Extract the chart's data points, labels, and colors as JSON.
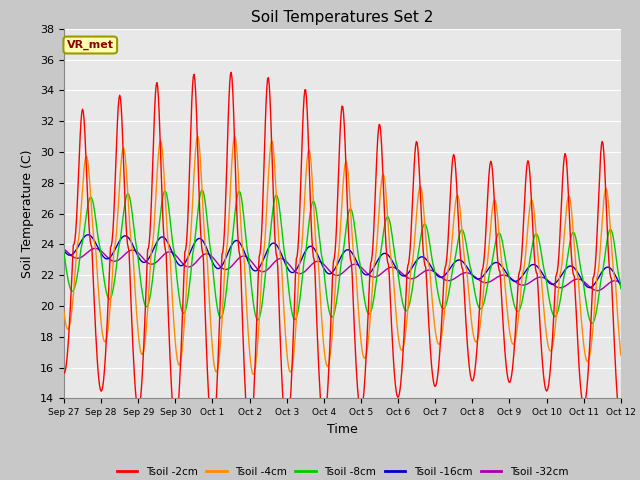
{
  "title": "Soil Temperatures Set 2",
  "xlabel": "Time",
  "ylabel": "Soil Temperature (C)",
  "ylim": [
    14,
    38
  ],
  "yticks": [
    14,
    16,
    18,
    20,
    22,
    24,
    26,
    28,
    30,
    32,
    34,
    36,
    38
  ],
  "plot_bg_color": "#e8e8e8",
  "fig_bg_color": "#c8c8c8",
  "annotation_text": "VR_met",
  "annotation_box_color": "#ffffb0",
  "annotation_box_edge": "#999900",
  "annotation_text_color": "#8B0000",
  "series_colors": {
    "Tsoil -2cm": "#ff0000",
    "Tsoil -4cm": "#ff8c00",
    "Tsoil -8cm": "#00cc00",
    "Tsoil -16cm": "#0000cc",
    "Tsoil -32cm": "#aa00aa"
  },
  "x_tick_labels": [
    "Sep 27",
    "Sep 28",
    "Sep 29",
    "Sep 30",
    "Oct 1",
    "Oct 2",
    "Oct 3",
    "Oct 4",
    "Oct 5",
    "Oct 6",
    "Oct 7",
    "Oct 8",
    "Oct 9",
    "Oct 10",
    "Oct 11",
    "Oct 12"
  ],
  "num_days": 15,
  "points_per_day": 48
}
